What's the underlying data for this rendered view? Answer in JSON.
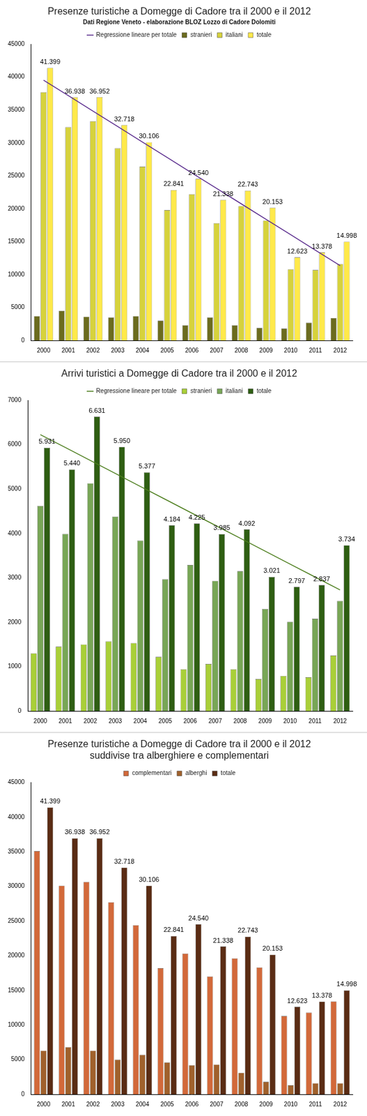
{
  "chart_data": [
    {
      "type": "bar",
      "title": "Presenze turistiche a Domegge di Cadore tra il 2000 e il 2012",
      "subtitle": "Dati Regione Veneto - elaborazione BLOZ Lozzo di Cadore Dolomiti",
      "categories": [
        "2000",
        "2001",
        "2002",
        "2003",
        "2004",
        "2005",
        "2006",
        "2007",
        "2008",
        "2009",
        "2010",
        "2011",
        "2012"
      ],
      "series": [
        {
          "name": "stranieri",
          "color": "#6b6b1e",
          "values": [
            3700,
            4500,
            3600,
            3500,
            3700,
            3000,
            2300,
            3500,
            2300,
            1900,
            1800,
            2700,
            3400
          ]
        },
        {
          "name": "italiani",
          "color": "#d6d23c",
          "values": [
            37700,
            32400,
            33300,
            29200,
            26400,
            19800,
            22200,
            17800,
            20400,
            18200,
            10800,
            10700,
            11600
          ]
        },
        {
          "name": "totale",
          "color": "#ffe94a",
          "values": [
            41399,
            36938,
            36952,
            32718,
            30106,
            22841,
            24540,
            21338,
            22743,
            20153,
            12623,
            13378,
            14998
          ],
          "data_labels": true,
          "value_labels": [
            "41.399",
            "36.938",
            "36.952",
            "32.718",
            "30.106",
            "22.841",
            "24.540",
            "21.338",
            "22.743",
            "20.153",
            "12.623",
            "13.378",
            "14.998"
          ]
        },
        {
          "name": "Regressione lineare per totale",
          "type": "line",
          "marker": "none",
          "color": "#5b2d8e",
          "values": [
            39532,
            37183,
            34835,
            32486,
            30137,
            27789,
            25441,
            23092,
            20744,
            18395,
            16047,
            13698,
            11349
          ]
        }
      ],
      "ylim": [
        0,
        45000
      ],
      "yticks": [
        0,
        5000,
        10000,
        15000,
        20000,
        25000,
        30000,
        35000,
        40000,
        45000
      ],
      "grid": false,
      "legend": "top"
    },
    {
      "type": "bar",
      "title": "Arrivi turistici a Domegge di Cadore tra il 2000 e il 2012",
      "categories": [
        "2000",
        "2001",
        "2002",
        "2003",
        "2004",
        "2005",
        "2006",
        "2007",
        "2008",
        "2009",
        "2010",
        "2011",
        "2012"
      ],
      "series": [
        {
          "name": "stranieri",
          "color": "#a9cf38",
          "values": [
            1300,
            1450,
            1500,
            1570,
            1530,
            1220,
            940,
            1060,
            940,
            720,
            790,
            760,
            1250
          ]
        },
        {
          "name": "italiani",
          "color": "#78a656",
          "values": [
            4620,
            3990,
            5130,
            4380,
            3840,
            2970,
            3290,
            2930,
            3150,
            2300,
            2010,
            2080,
            2480
          ]
        },
        {
          "name": "totale",
          "color": "#2e5e12",
          "values": [
            5931,
            5440,
            6631,
            5950,
            5377,
            4184,
            4225,
            3985,
            4092,
            3021,
            2797,
            2837,
            3734
          ],
          "data_labels": true,
          "value_labels": [
            "5.931",
            "5.440",
            "6.631",
            "5.950",
            "5.377",
            "4.184",
            "4.225",
            "3.985",
            "4.092",
            "3.021",
            "2.797",
            "2.837",
            "3.734"
          ]
        },
        {
          "name": "Regressione lineare per totale",
          "type": "line",
          "marker": "none",
          "color": "#4d7e1e",
          "values": [
            6227,
            5936,
            5644,
            5352,
            5060,
            4769,
            4477,
            4185,
            3894,
            3602,
            3310,
            3019,
            2727
          ]
        }
      ],
      "ylim": [
        0,
        7000
      ],
      "yticks": [
        0,
        1000,
        2000,
        3000,
        4000,
        5000,
        6000,
        7000
      ],
      "grid": false,
      "legend": "top"
    },
    {
      "type": "bar",
      "title": [
        "Presenze turistiche a Domegge di Cadore tra il 2000 e il 2012",
        "suddivise tra alberghiere e complementari"
      ],
      "categories": [
        "2000",
        "2001",
        "2002",
        "2003",
        "2004",
        "2005",
        "2006",
        "2007",
        "2008",
        "2009",
        "2010",
        "2011",
        "2012"
      ],
      "series": [
        {
          "name": "complementari",
          "color": "#d2693a",
          "values": [
            35100,
            30100,
            30650,
            27700,
            24400,
            18200,
            20300,
            17000,
            19600,
            18300,
            11300,
            11800,
            13400
          ]
        },
        {
          "name": "alberghi",
          "color": "#a0612c",
          "values": [
            6300,
            6800,
            6300,
            5000,
            5700,
            4600,
            4200,
            4300,
            3100,
            1800,
            1300,
            1600,
            1600
          ]
        },
        {
          "name": "totale",
          "color": "#5a2c14",
          "values": [
            41399,
            36938,
            36952,
            32718,
            30106,
            22841,
            24540,
            21338,
            22743,
            20153,
            12623,
            13378,
            14998
          ],
          "data_labels": true,
          "value_labels": [
            "41.399",
            "36.938",
            "36.952",
            "32.718",
            "30.106",
            "22.841",
            "24.540",
            "21.338",
            "22.743",
            "20.153",
            "12.623",
            "13.378",
            "14.998"
          ]
        }
      ],
      "ylim": [
        0,
        45000
      ],
      "yticks": [
        0,
        5000,
        10000,
        15000,
        20000,
        25000,
        30000,
        35000,
        40000,
        45000
      ],
      "grid": false,
      "legend": "top"
    }
  ]
}
